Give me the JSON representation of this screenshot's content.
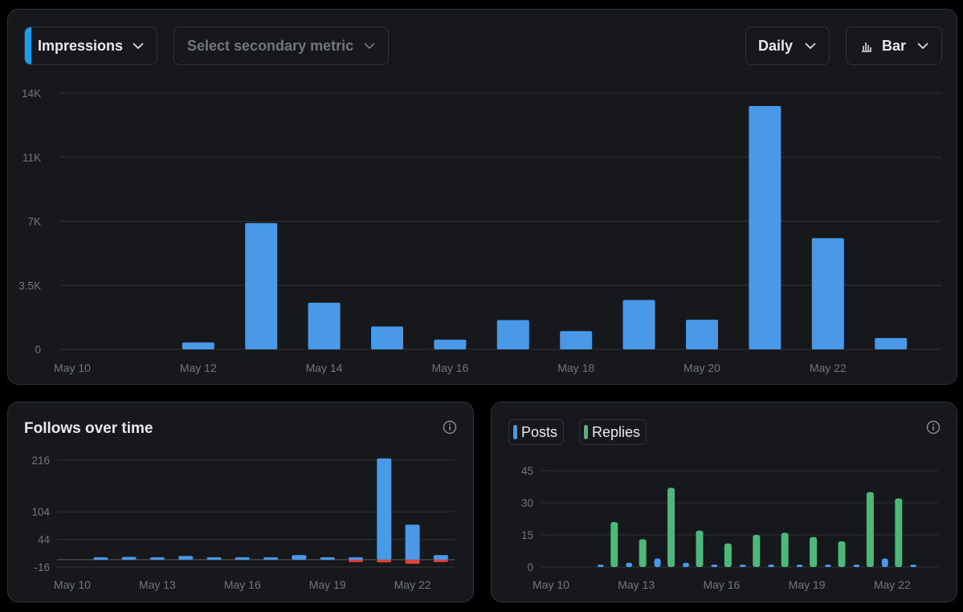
{
  "controls": {
    "primary_metric": "Impressions",
    "secondary_placeholder": "Select secondary metric",
    "interval": "Daily",
    "chart_type": "Bar"
  },
  "colors": {
    "blue": "#4a99e9",
    "green": "#4db87a",
    "red": "#e0413c",
    "grid": "#2f3336",
    "label": "#71767b"
  },
  "follows_card": {
    "title": "Follows over time"
  },
  "posts_card": {
    "legend": {
      "posts": "Posts",
      "replies": "Replies"
    }
  },
  "chart_data": [
    {
      "type": "bar",
      "ylim": [
        0,
        14000
      ],
      "yticks": [
        "0",
        "3.5K",
        "7K",
        "11K",
        "14K"
      ],
      "ytick_values": [
        0,
        3500,
        7000,
        10500,
        14000
      ],
      "categories": [
        "May 10",
        "May 11",
        "May 12",
        "May 13",
        "May 14",
        "May 15",
        "May 16",
        "May 17",
        "May 18",
        "May 19",
        "May 20",
        "May 21",
        "May 22",
        "May 23"
      ],
      "xtick_labels": [
        "May 10",
        "May 12",
        "May 14",
        "May 16",
        "May 18",
        "May 20",
        "May 22"
      ],
      "series": [
        {
          "color": "#4a99e9",
          "values": [
            0,
            0,
            380,
            6900,
            2550,
            1250,
            530,
            1600,
            1000,
            2700,
            1620,
            13300,
            6080,
            620
          ]
        }
      ]
    },
    {
      "type": "bar",
      "title": "Follows over time",
      "ylim": [
        -16,
        216
      ],
      "yticks": [
        "-16",
        "44",
        "104",
        "216"
      ],
      "ytick_values": [
        -16,
        44,
        104,
        216
      ],
      "categories": [
        "May 10",
        "May 11",
        "May 12",
        "May 13",
        "May 14",
        "May 15",
        "May 16",
        "May 17",
        "May 18",
        "May 19",
        "May 20",
        "May 21",
        "May 22",
        "May 23"
      ],
      "xtick_labels": [
        "May 10",
        "May 13",
        "May 16",
        "May 19",
        "May 22"
      ],
      "series": [
        {
          "color": "#4a99e9",
          "values": [
            0,
            1,
            6,
            4,
            8,
            3,
            2,
            1,
            10,
            3,
            5,
            220,
            76,
            10
          ]
        },
        {
          "color": "#e0413c",
          "values": [
            0,
            0,
            0,
            0,
            0,
            0,
            0,
            0,
            0,
            0,
            -2,
            -6,
            -9,
            -1
          ]
        }
      ]
    },
    {
      "type": "bar",
      "ylim": [
        0,
        45
      ],
      "yticks": [
        "0",
        "15",
        "30",
        "45"
      ],
      "ytick_values": [
        0,
        15,
        30,
        45
      ],
      "categories": [
        "May 10",
        "May 11",
        "May 12",
        "May 13",
        "May 14",
        "May 15",
        "May 16",
        "May 17",
        "May 18",
        "May 19",
        "May 20",
        "May 21",
        "May 22",
        "May 23"
      ],
      "xtick_labels": [
        "May 10",
        "May 13",
        "May 16",
        "May 19",
        "May 22"
      ],
      "series": [
        {
          "name": "Posts",
          "color": "#4a99e9",
          "values": [
            0,
            0,
            1,
            2,
            4,
            2,
            1,
            1,
            1,
            1,
            1,
            1,
            4,
            1
          ]
        },
        {
          "name": "Replies",
          "color": "#4db87a",
          "values": [
            0,
            0,
            21,
            13,
            37,
            17,
            11,
            15,
            16,
            14,
            12,
            35,
            32,
            0
          ]
        }
      ]
    }
  ]
}
